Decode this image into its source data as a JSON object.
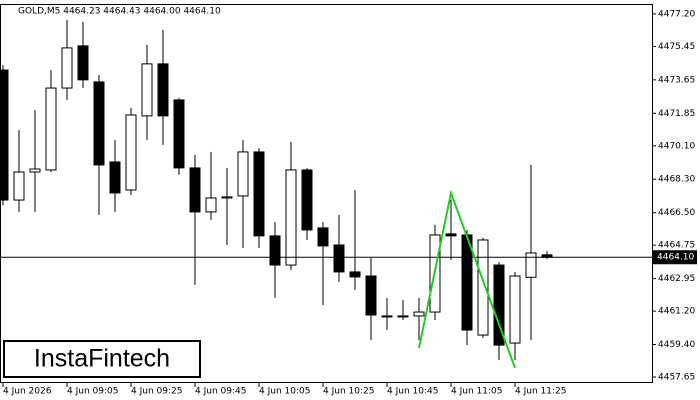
{
  "chart_data": {
    "type": "candlestick",
    "title": "GOLD,M5  4464.23 4464.43 4464.00 4464.10",
    "watermark": "InstaFintech",
    "categories": [
      "4 Jun 2026",
      null,
      null,
      null,
      "4 Jun 09:05",
      null,
      null,
      null,
      "4 Jun 09:25",
      null,
      null,
      null,
      "4 Jun 09:45",
      null,
      null,
      null,
      "4 Jun 10:05",
      null,
      null,
      null,
      "4 Jun 10:25",
      null,
      null,
      null,
      "4 Jun 10:45",
      null,
      null,
      null,
      "4 Jun 11:05",
      null,
      null,
      null,
      "4 Jun 11:25",
      null,
      null
    ],
    "open": [
      4474.18,
      4467.18,
      4468.69,
      4468.8,
      4473.21,
      4475.48,
      4473.54,
      4469.23,
      4467.72,
      4471.71,
      4474.51,
      4472.57,
      4468.91,
      4466.54,
      4467.29,
      4467.4,
      4469.77,
      4465.25,
      4463.68,
      4468.8,
      4465.68,
      4464.76,
      4463.31,
      4463.09,
      4460.94,
      4460.94,
      4460.94,
      4461.15,
      4465.36,
      4465.3,
      4459.91,
      4463.68,
      4459.48,
      4463.02,
      4464.23
    ],
    "high": [
      4474.45,
      4470.95,
      4472.03,
      4474.18,
      4476.88,
      4476.77,
      4473.91,
      4470.41,
      4472.14,
      4475.53,
      4476.34,
      4472.68,
      4469.61,
      4469.77,
      4468.91,
      4470.41,
      4469.98,
      4466.0,
      4470.31,
      4468.91,
      4466.0,
      4466.38,
      4467.72,
      4464.06,
      4461.91,
      4461.8,
      4461.91,
      4465.84,
      4467.18,
      4465.57,
      4465.14,
      4463.84,
      4463.31,
      4469.07,
      4464.43
    ],
    "low": [
      4466.9,
      4466.54,
      4466.54,
      4468.69,
      4472.57,
      4473.21,
      4466.38,
      4466.54,
      4467.45,
      4470.41,
      4470.15,
      4468.53,
      4462.61,
      4466.11,
      4464.76,
      4464.6,
      4464.6,
      4461.91,
      4463.41,
      4465.03,
      4461.53,
      4462.77,
      4462.34,
      4459.64,
      4460.18,
      4460.72,
      4459.64,
      4460.72,
      4463.95,
      4459.37,
      4459.75,
      4458.57,
      4458.57,
      4459.64,
      4464.0
    ],
    "close": [
      4467.18,
      4468.69,
      4468.85,
      4473.21,
      4475.37,
      4473.65,
      4469.07,
      4467.56,
      4471.76,
      4474.51,
      4471.71,
      4468.91,
      4466.54,
      4467.29,
      4467.35,
      4469.77,
      4465.25,
      4463.68,
      4468.8,
      4465.57,
      4464.71,
      4463.31,
      4463.04,
      4460.99,
      4460.94,
      4460.94,
      4461.15,
      4465.3,
      4465.25,
      4460.18,
      4465.03,
      4459.37,
      4463.09,
      4464.33,
      4464.1
    ],
    "up_color": "#ffffff",
    "down_color": "#000000",
    "current_price": {
      "value": 4464.1,
      "label": "4464.10"
    },
    "pattern": {
      "color": "#22cc22",
      "x": [
        26,
        28,
        32
      ],
      "values": [
        4459.21,
        4467.56,
        4458.14
      ]
    },
    "ylim": [
      4457.33,
      4477.68
    ],
    "yticks": [
      {
        "value": 4477.2,
        "label": "4477.20"
      },
      4475.45,
      4473.65,
      4471.85,
      {
        "value": 4470.1,
        "label": "4470.10"
      },
      {
        "value": 4468.3,
        "label": "4468.30"
      },
      {
        "value": 4466.5,
        "label": "4466.50"
      },
      {
        "value": 4464.75,
        "label": "4464.75"
      },
      4462.95,
      {
        "value": 4461.2,
        "label": "4461.20"
      },
      {
        "value": 4459.4,
        "label": "4459.40"
      },
      4457.65
    ]
  }
}
